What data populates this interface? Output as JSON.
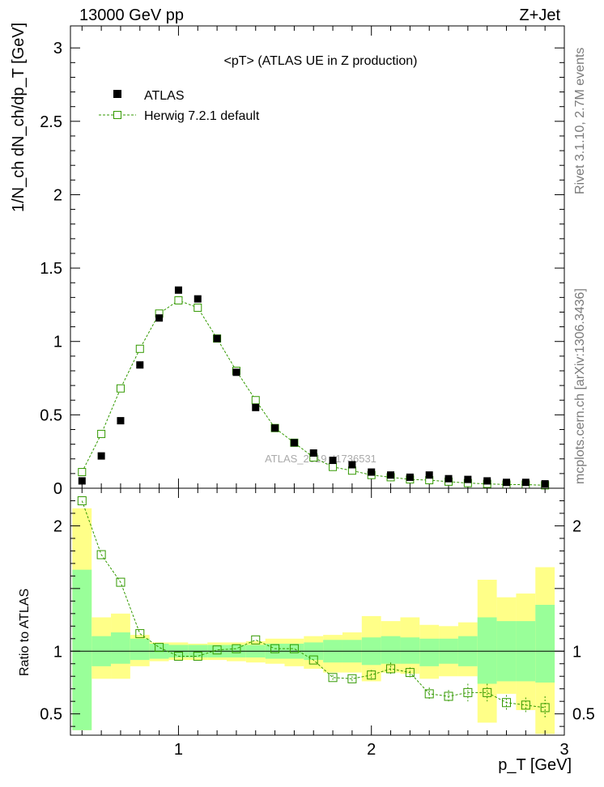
{
  "header": {
    "left": "13000 GeV pp",
    "right": "Z+Jet"
  },
  "side_labels": {
    "rivet": "Rivet 3.1.10, 2.7M events",
    "mcplots": "mcplots.cern.ch [arXiv:1306.3436]"
  },
  "colors": {
    "mc": "#339900",
    "band_stat": "#99ff99",
    "band_total": "#ffff88",
    "data": "#000000"
  },
  "chart_data": [
    {
      "type": "scatter",
      "title": "<pT> (ATLAS UE in Z production)",
      "ylabel": "1/N_ch dN_ch/dp_T [GeV]",
      "xlabel": "p_T [GeV]",
      "watermark": "ATLAS_2019_I1736531",
      "xlim": [
        0.44,
        3.0
      ],
      "ylim": [
        0,
        3.15
      ],
      "y_ticks": [
        "0",
        "0.5",
        "1",
        "1.5",
        "2",
        "2.5",
        "3"
      ],
      "legend_position": "top-left",
      "x": [
        0.5,
        0.6,
        0.7,
        0.8,
        0.9,
        1.0,
        1.1,
        1.2,
        1.3,
        1.4,
        1.5,
        1.6,
        1.7,
        1.8,
        1.9,
        2.0,
        2.1,
        2.2,
        2.3,
        2.4,
        2.5,
        2.6,
        2.7,
        2.8,
        2.9
      ],
      "series": [
        {
          "name": "ATLAS",
          "marker": "filled-square",
          "values": [
            0.05,
            0.22,
            0.46,
            0.84,
            1.16,
            1.35,
            1.29,
            1.02,
            0.79,
            0.55,
            0.41,
            0.31,
            0.24,
            0.19,
            0.16,
            0.11,
            0.09,
            0.075,
            0.09,
            0.065,
            0.06,
            0.05,
            0.04,
            0.04,
            0.03
          ]
        },
        {
          "name": "Herwig 7.2.1 default",
          "marker": "open-square",
          "line": "dashed",
          "values": [
            0.11,
            0.37,
            0.68,
            0.95,
            1.19,
            1.28,
            1.23,
            1.02,
            0.8,
            0.6,
            0.41,
            0.31,
            0.21,
            0.145,
            0.12,
            0.09,
            0.075,
            0.06,
            0.055,
            0.045,
            0.035,
            0.03,
            0.025,
            0.025,
            0.02
          ]
        }
      ]
    },
    {
      "type": "line",
      "ylabel": "Ratio to ATLAS",
      "xlabel": "p_T [GeV]",
      "xlim": [
        0.44,
        3.0
      ],
      "ylim": [
        0.33,
        2.3
      ],
      "x_ticks": [
        "1",
        "2",
        "3"
      ],
      "y_ticks": [
        "0.5",
        "1",
        "2"
      ],
      "x": [
        0.5,
        0.6,
        0.7,
        0.8,
        0.9,
        1.0,
        1.1,
        1.2,
        1.3,
        1.4,
        1.5,
        1.6,
        1.7,
        1.8,
        1.9,
        2.0,
        2.1,
        2.2,
        2.3,
        2.4,
        2.5,
        2.6,
        2.7,
        2.8,
        2.9
      ],
      "series": [
        {
          "name": "Herwig 7.2.1 default",
          "values": [
            2.2,
            1.77,
            1.55,
            1.14,
            1.03,
            0.96,
            0.96,
            1.01,
            1.02,
            1.09,
            1.02,
            1.02,
            0.93,
            0.79,
            0.78,
            0.81,
            0.86,
            0.83,
            0.66,
            0.64,
            0.67,
            0.67,
            0.59,
            0.57,
            0.55
          ],
          "err": [
            0,
            0,
            0,
            0,
            0,
            0,
            0,
            0,
            0,
            0,
            0,
            0,
            0,
            0.02,
            0.02,
            0.04,
            0.05,
            0.04,
            0.05,
            0.05,
            0.07,
            0.07,
            0.06,
            0.06,
            0.09
          ]
        }
      ],
      "bands": {
        "stat_low": [
          0.37,
          0.88,
          0.9,
          0.93,
          0.94,
          0.95,
          0.95,
          0.95,
          0.95,
          0.95,
          0.94,
          0.94,
          0.93,
          0.91,
          0.91,
          0.89,
          0.9,
          0.9,
          0.88,
          0.9,
          0.88,
          0.74,
          0.76,
          0.76,
          0.75
        ],
        "stat_high": [
          1.65,
          1.12,
          1.15,
          1.1,
          1.06,
          1.05,
          1.05,
          1.05,
          1.05,
          1.05,
          1.06,
          1.06,
          1.07,
          1.09,
          1.09,
          1.11,
          1.12,
          1.11,
          1.1,
          1.1,
          1.12,
          1.27,
          1.24,
          1.24,
          1.37
        ],
        "tot_low": [
          0.37,
          0.78,
          0.78,
          0.88,
          0.92,
          0.93,
          0.93,
          0.93,
          0.92,
          0.91,
          0.9,
          0.88,
          0.86,
          0.83,
          0.83,
          0.76,
          0.83,
          0.82,
          0.78,
          0.8,
          0.8,
          0.43,
          0.66,
          0.53,
          0.34
        ],
        "tot_high": [
          2.14,
          1.27,
          1.3,
          1.13,
          1.07,
          1.07,
          1.06,
          1.07,
          1.07,
          1.08,
          1.1,
          1.1,
          1.12,
          1.13,
          1.15,
          1.28,
          1.24,
          1.27,
          1.21,
          1.2,
          1.23,
          1.57,
          1.43,
          1.46,
          1.67
        ]
      }
    }
  ]
}
